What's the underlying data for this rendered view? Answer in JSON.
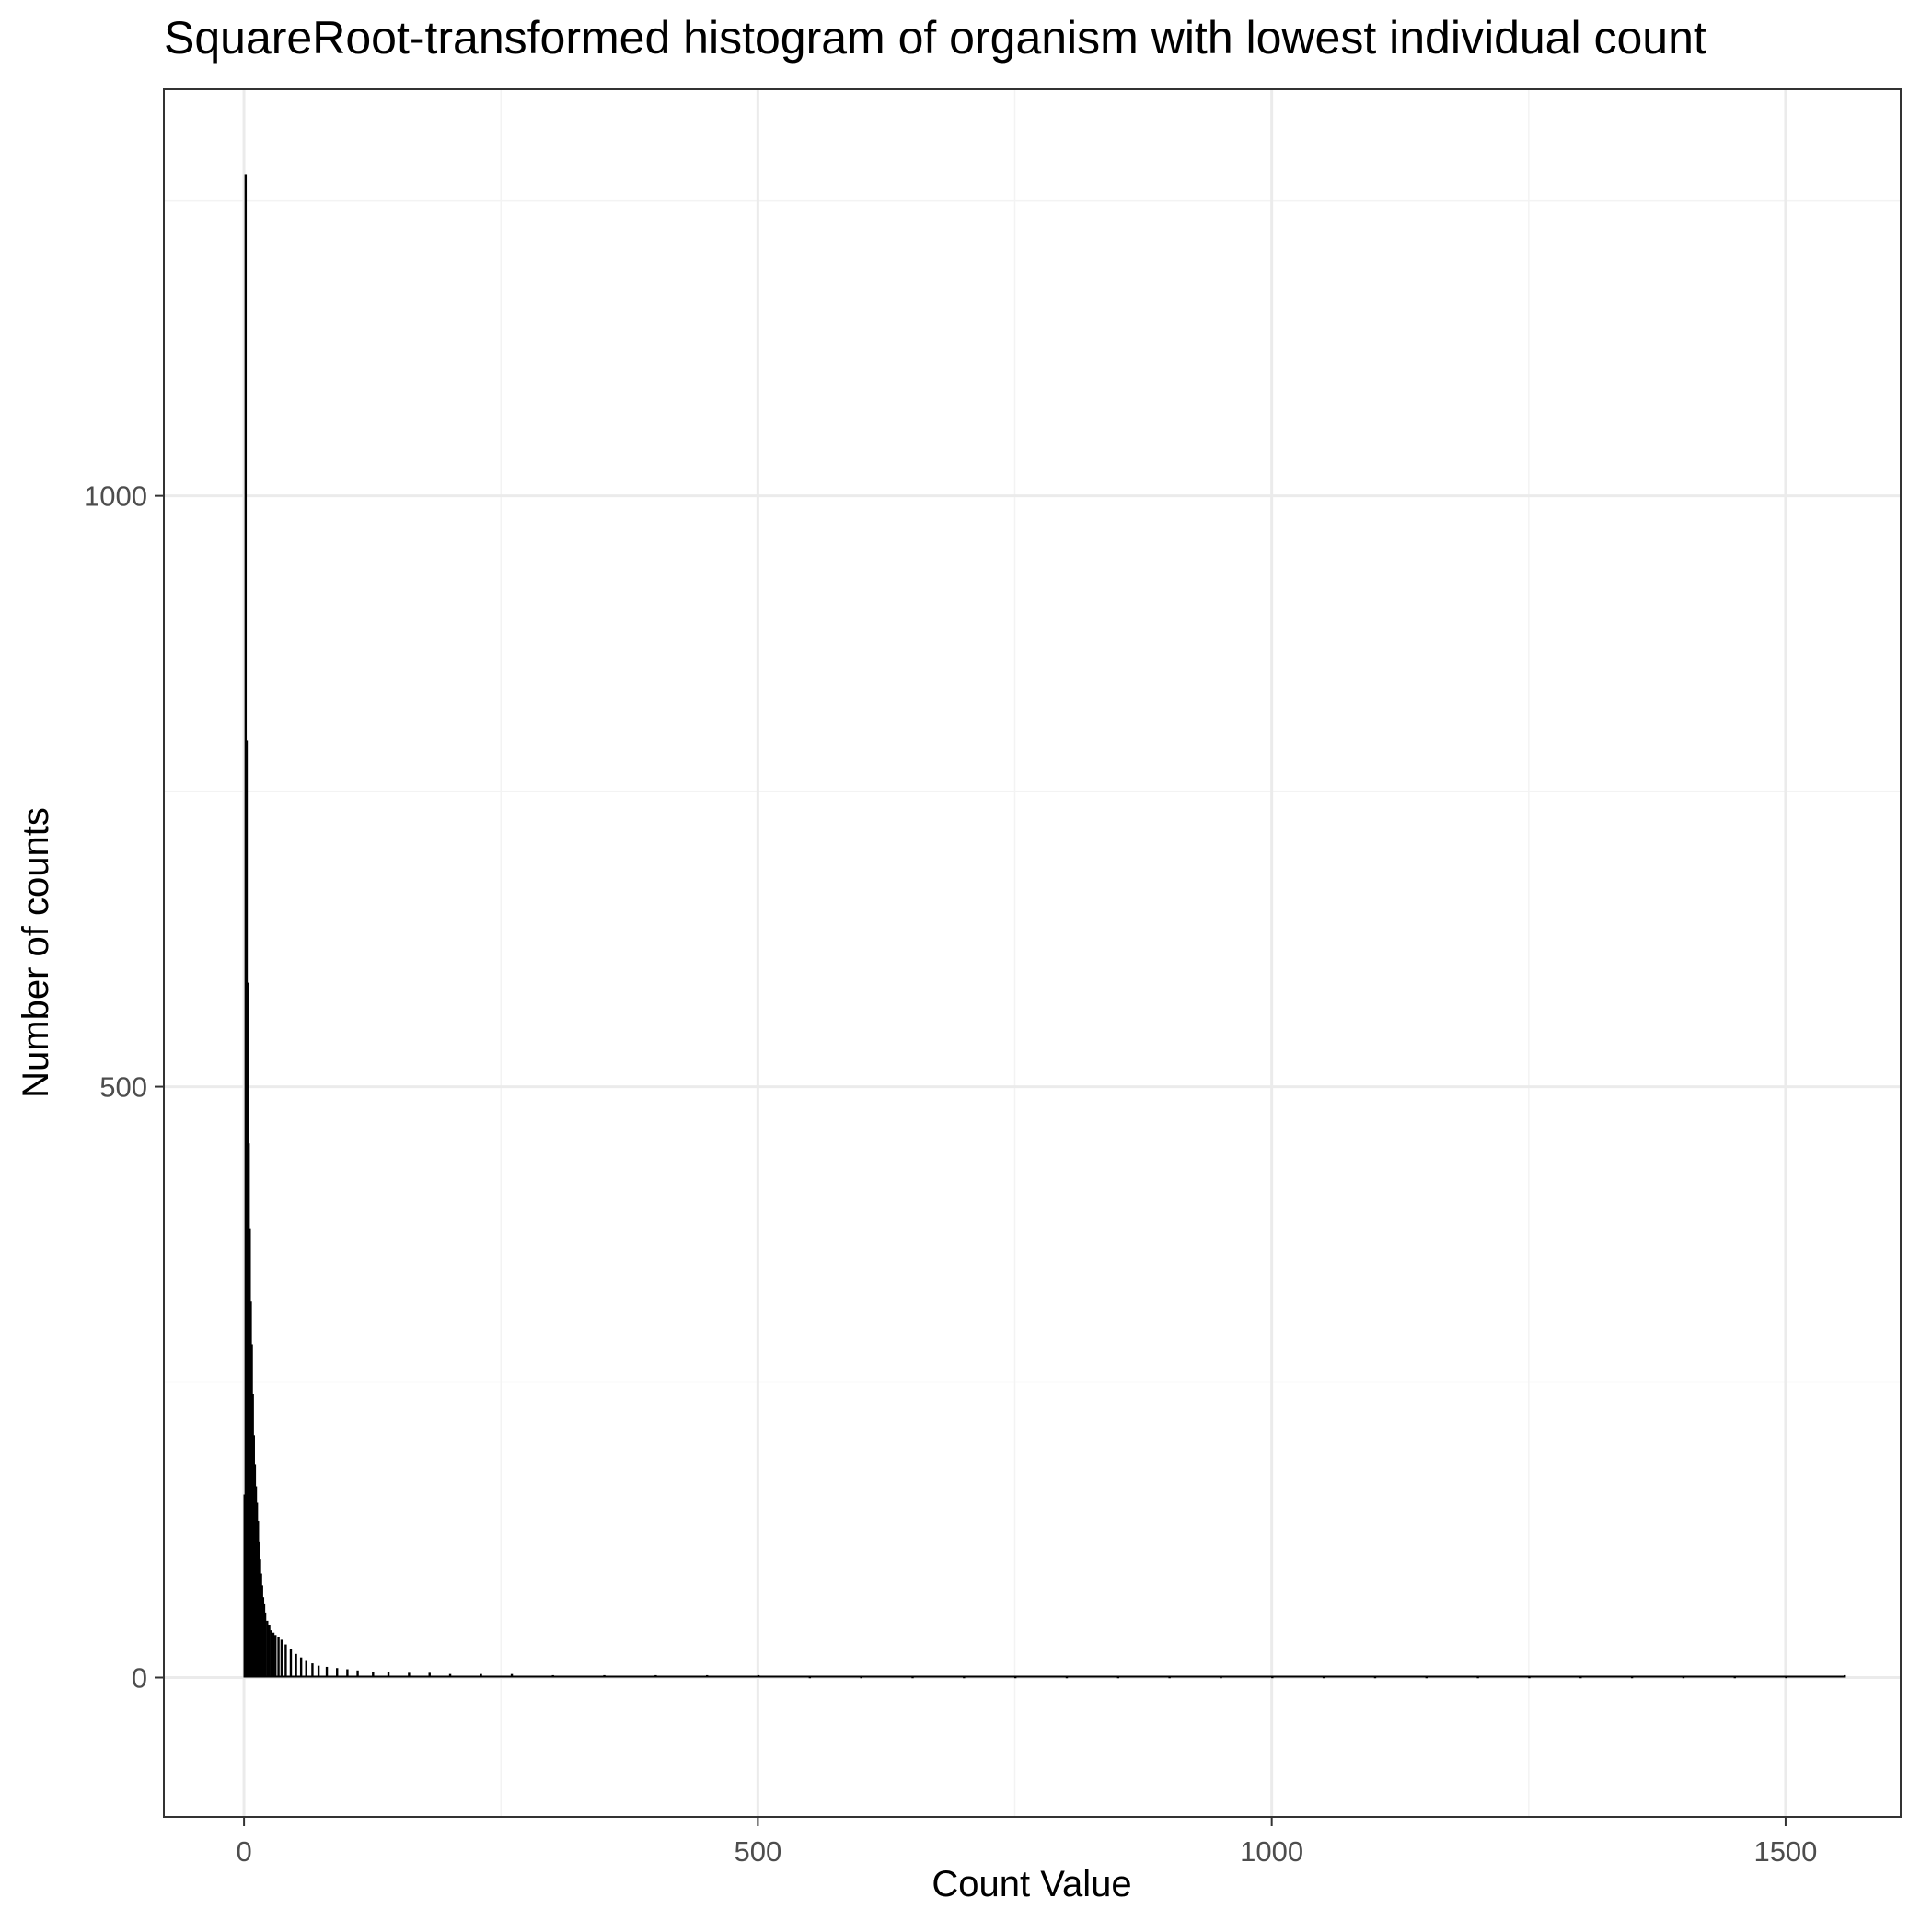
{
  "chart_data": {
    "type": "bar",
    "title": "SquareRoot-transformed histogram of organism with lowest individual count",
    "xlabel": "Count Value",
    "ylabel": "Number of counts",
    "xlim": [
      -78,
      1612
    ],
    "ylim": [
      -118,
      1344
    ],
    "x_ticks": [
      0,
      500,
      1000,
      1500
    ],
    "y_ticks": [
      0,
      500,
      1000
    ],
    "x_tick_labels": [
      "0",
      "500",
      "1000",
      "1500"
    ],
    "y_tick_labels": [
      "0",
      "500",
      "1000"
    ],
    "grid": true,
    "bin_width": 1,
    "bars_x": [
      0,
      1,
      2,
      3,
      4,
      5,
      6,
      7,
      8,
      9,
      10,
      11,
      12,
      13,
      14,
      15,
      16,
      17,
      18,
      19,
      20,
      22,
      24,
      26,
      28,
      30,
      33,
      36,
      40,
      45,
      50,
      55,
      60,
      66,
      72,
      80,
      90,
      100,
      110,
      125,
      140,
      160,
      180,
      200,
      230,
      260,
      300,
      350,
      400,
      450,
      500,
      550,
      600,
      650,
      700,
      750,
      800,
      850,
      900,
      950,
      1000,
      1050,
      1100,
      1150,
      1200,
      1250,
      1300,
      1350,
      1400,
      1450,
      1500,
      1557
    ],
    "bars_y": [
      155,
      1272,
      793,
      588,
      452,
      380,
      318,
      282,
      240,
      205,
      180,
      162,
      148,
      132,
      115,
      100,
      88,
      78,
      68,
      62,
      55,
      48,
      44,
      40,
      38,
      36,
      34,
      32,
      28,
      24,
      20,
      17,
      14,
      12,
      10,
      9,
      8,
      7,
      6,
      5,
      5,
      4,
      4,
      3,
      3,
      3,
      2,
      2,
      2,
      2,
      2,
      1,
      1,
      1,
      1,
      1,
      1,
      1,
      1,
      1,
      1,
      1,
      1,
      1,
      1,
      1,
      1,
      1,
      1,
      1,
      1,
      2
    ],
    "bar_color": "#000000",
    "panel_border_color": "#333333",
    "grid_major_color": "#ebebeb",
    "grid_minor_color": "#f3f3f3"
  }
}
